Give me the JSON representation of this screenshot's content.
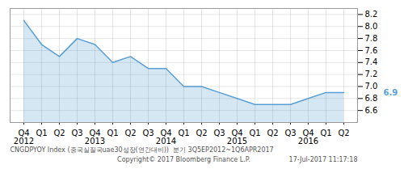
{
  "chart_data": {
    "type": "area",
    "categories": [
      "Q4\n2012",
      "Q1",
      "Q2",
      "Q3",
      "Q4\n2013",
      "Q1",
      "Q2",
      "Q3",
      "Q4\n2014",
      "Q1",
      "Q2",
      "Q3",
      "Q4\n2015",
      "Q1",
      "Q2",
      "Q3",
      "Q4\n2016",
      "Q1",
      "Q2"
    ],
    "values": [
      8.1,
      7.7,
      7.5,
      7.8,
      7.7,
      7.4,
      7.5,
      7.3,
      7.3,
      7.0,
      7.0,
      6.9,
      6.8,
      6.7,
      6.7,
      6.7,
      6.8,
      6.9,
      6.9
    ],
    "color": "#5a9fd4",
    "ylim": [
      6.4,
      8.3
    ],
    "yticks": [
      6.6,
      6.8,
      {
        "value": 7,
        "label": "7.0"
      },
      7.2,
      7.4,
      7.6,
      7.8,
      {
        "value": 8,
        "label": "8.0"
      },
      8.2
    ],
    "grid": true,
    "annotations": [
      {
        "text": "6.9",
        "y": 6.9
      },
      {
        "text": "CNGDPYOY Index (중국실질국uae30성장(연간대비))  분기 3Q5EP2012~1Q6APR2017"
      },
      {
        "text": "Copyright© 2017 Bloomberg Finance L.P."
      },
      {
        "text": "17-Jul-2017 11:17:18"
      }
    ]
  }
}
